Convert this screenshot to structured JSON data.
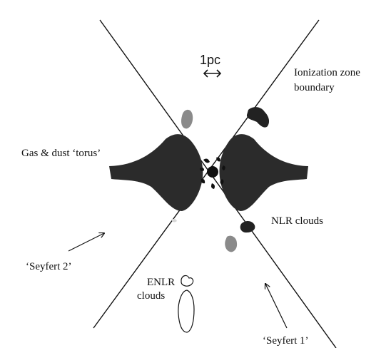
{
  "labels": {
    "scale": "1pc",
    "ionization_line1": "Ionization zone",
    "ionization_line2": "boundary",
    "torus": "Gas & dust ‘torus’",
    "nlr": "NLR clouds",
    "seyfert2": "‘Seyfert 2’",
    "enlr_line1": "ENLR",
    "enlr_line2": "clouds",
    "seyfert1": "‘Seyfert 1’"
  },
  "colors": {
    "ink": "#111111",
    "torus": "#2b2b2b",
    "grey_cloud": "#8a8a8a"
  },
  "icons": {
    "scale_bar": "double-headed-arrow",
    "viewing_arrows": "arrow"
  }
}
